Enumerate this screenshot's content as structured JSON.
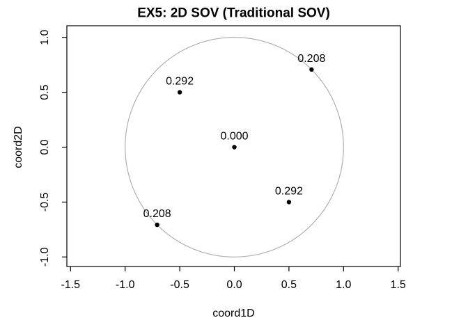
{
  "chart_data": {
    "type": "scatter",
    "title": "EX5: 2D SOV (Traditional SOV)",
    "xlabel": "coord1D",
    "ylabel": "coord2D",
    "x_ticks": [
      "-1.5",
      "-1.0",
      "-0.5",
      "0.0",
      "0.5",
      "1.0",
      "1.5"
    ],
    "x_tick_values": [
      -1.5,
      -1.0,
      -0.5,
      0.0,
      0.5,
      1.0,
      1.5
    ],
    "y_ticks": [
      "-1.0",
      "-0.5",
      "0.0",
      "0.5",
      "1.0"
    ],
    "y_tick_values": [
      -1.0,
      -0.5,
      0.0,
      0.5,
      1.0
    ],
    "xlim": [
      -1.53,
      1.52
    ],
    "ylim": [
      -1.09,
      1.1
    ],
    "grid": false,
    "legend": false,
    "points": [
      {
        "x": 0.0,
        "y": 0.0,
        "label": "0.000"
      },
      {
        "x": -0.5,
        "y": 0.5,
        "label": "0.292"
      },
      {
        "x": 0.707,
        "y": 0.707,
        "label": "0.208"
      },
      {
        "x": 0.5,
        "y": -0.5,
        "label": "0.292"
      },
      {
        "x": -0.707,
        "y": -0.707,
        "label": "0.208"
      }
    ],
    "point_color": "#000000",
    "reference_circle": {
      "center_x": 0,
      "center_y": 0,
      "radius": 1.0,
      "color": "#A9A9A9"
    },
    "frame_color": "#000000",
    "background_color": "#ffffff"
  }
}
